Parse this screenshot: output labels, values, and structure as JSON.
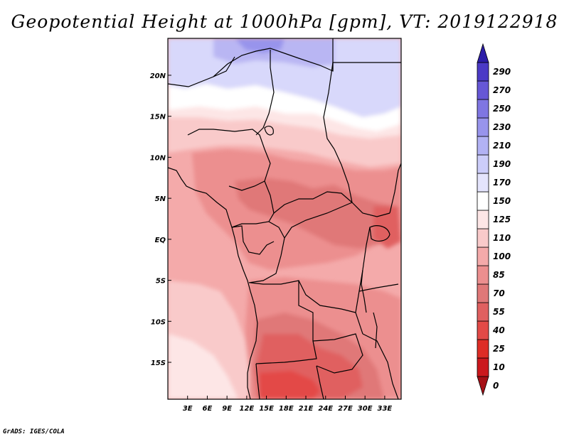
{
  "title": "Geopotential Height at 1000hPa [gpm], VT: 2019122918",
  "credit": "GrADS: IGES/COLA",
  "map": {
    "lat_labels": [
      "20N",
      "15N",
      "10N",
      "5N",
      "EQ",
      "5S",
      "10S",
      "15S"
    ],
    "lon_labels": [
      "3E",
      "6E",
      "9E",
      "12E",
      "15E",
      "18E",
      "21E",
      "24E",
      "27E",
      "30E",
      "33E"
    ],
    "lat_range": [
      -19.5,
      24.5
    ],
    "lon_range": [
      0,
      35.5
    ]
  },
  "colorbar": {
    "levels": [
      "0",
      "10",
      "25",
      "40",
      "55",
      "70",
      "85",
      "100",
      "110",
      "125",
      "150",
      "170",
      "190",
      "210",
      "230",
      "250",
      "270",
      "290"
    ],
    "colors": [
      "#a50f15",
      "#cb181d",
      "#de2d26",
      "#e34a47",
      "#e06060",
      "#e07878",
      "#ec8f8f",
      "#f4aaaa",
      "#f9caca",
      "#fde6e6",
      "#ffffff",
      "#e4e4fc",
      "#cccdfa",
      "#b2b2f4",
      "#9894ec",
      "#7f76e2",
      "#6657d6",
      "#4b3ac6",
      "#2c1da8"
    ]
  },
  "colors": {
    "north_low": "#d8d8fb",
    "north_mid": "#b9b6f3",
    "band_white": "#ffffff",
    "sahel": "#f7c6c6",
    "central": "#ec9898",
    "south_dark": "#e07070"
  }
}
